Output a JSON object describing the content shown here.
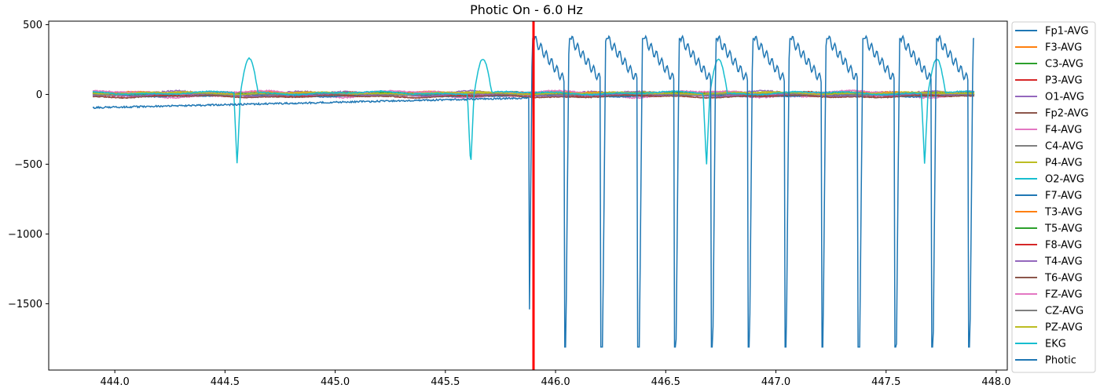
{
  "chart_data": {
    "type": "line",
    "title": "Photic On - 6.0 Hz",
    "xlabel": "",
    "ylabel": "",
    "xlim": [
      443.7,
      448.05
    ],
    "ylim": [
      -1975,
      525
    ],
    "x_ticks": [
      444.0,
      444.5,
      445.0,
      445.5,
      446.0,
      446.5,
      447.0,
      447.5,
      448.0
    ],
    "x_tick_labels": [
      "444.0",
      "444.5",
      "445.0",
      "445.5",
      "446.0",
      "446.5",
      "447.0",
      "447.5",
      "448.0"
    ],
    "y_ticks": [
      500,
      0,
      -500,
      -1000,
      -1500
    ],
    "y_tick_labels": [
      "500",
      "0",
      "−500",
      "−1000",
      "−1500"
    ],
    "grid": false,
    "legend_position": "outside-right",
    "marker_line": {
      "x": 445.9,
      "color": "#ff0000"
    },
    "x_start": 443.9,
    "x_end": 447.9,
    "series": [
      {
        "name": "Fp1-AVG",
        "color": "#1f77b4",
        "base": 5,
        "amp": 6
      },
      {
        "name": "F3-AVG",
        "color": "#ff7f0e",
        "base": 3,
        "amp": 5
      },
      {
        "name": "C3-AVG",
        "color": "#2ca02c",
        "base": 2,
        "amp": 5
      },
      {
        "name": "P3-AVG",
        "color": "#d62728",
        "base": 6,
        "amp": 8
      },
      {
        "name": "O1-AVG",
        "color": "#9467bd",
        "base": 10,
        "amp": 10
      },
      {
        "name": "Fp2-AVG",
        "color": "#8c564b",
        "base": -5,
        "amp": 6
      },
      {
        "name": "F4-AVG",
        "color": "#e377c2",
        "base": -10,
        "amp": 9
      },
      {
        "name": "C4-AVG",
        "color": "#7f7f7f",
        "base": 0,
        "amp": 5
      },
      {
        "name": "P4-AVG",
        "color": "#bcbd22",
        "base": 8,
        "amp": 7
      },
      {
        "name": "O2-AVG",
        "color": "#17becf",
        "base": 4,
        "amp": 10
      },
      {
        "name": "F7-AVG",
        "color": "#1f77b4",
        "base": -8,
        "amp": 6
      },
      {
        "name": "T3-AVG",
        "color": "#ff7f0e",
        "base": 12,
        "amp": 6
      },
      {
        "name": "T5-AVG",
        "color": "#2ca02c",
        "base": 7,
        "amp": 6
      },
      {
        "name": "F8-AVG",
        "color": "#d62728",
        "base": -12,
        "amp": 7
      },
      {
        "name": "T4-AVG",
        "color": "#9467bd",
        "base": -4,
        "amp": 6
      },
      {
        "name": "T6-AVG",
        "color": "#8c564b",
        "base": -15,
        "amp": 6
      },
      {
        "name": "FZ-AVG",
        "color": "#e377c2",
        "base": 15,
        "amp": 8
      },
      {
        "name": "CZ-AVG",
        "color": "#7f7f7f",
        "base": 1,
        "amp": 4
      },
      {
        "name": "PZ-AVG",
        "color": "#bcbd22",
        "base": 9,
        "amp": 5
      },
      {
        "name": "EKG",
        "color": "#17becf",
        "base": 10,
        "amp": 8,
        "beats": [
          444.57,
          445.63,
          446.7,
          447.69
        ],
        "beat_peak": 245,
        "beat_trough": -520
      },
      {
        "name": "Photic",
        "color": "#1f77b4",
        "base": -95,
        "amp": 6,
        "drift_end": -25,
        "pulse_start": 445.88,
        "pulse_period": 0.1667,
        "pulse_min": -1830,
        "pulse_max": 400,
        "pulse_decay": 100
      }
    ]
  }
}
